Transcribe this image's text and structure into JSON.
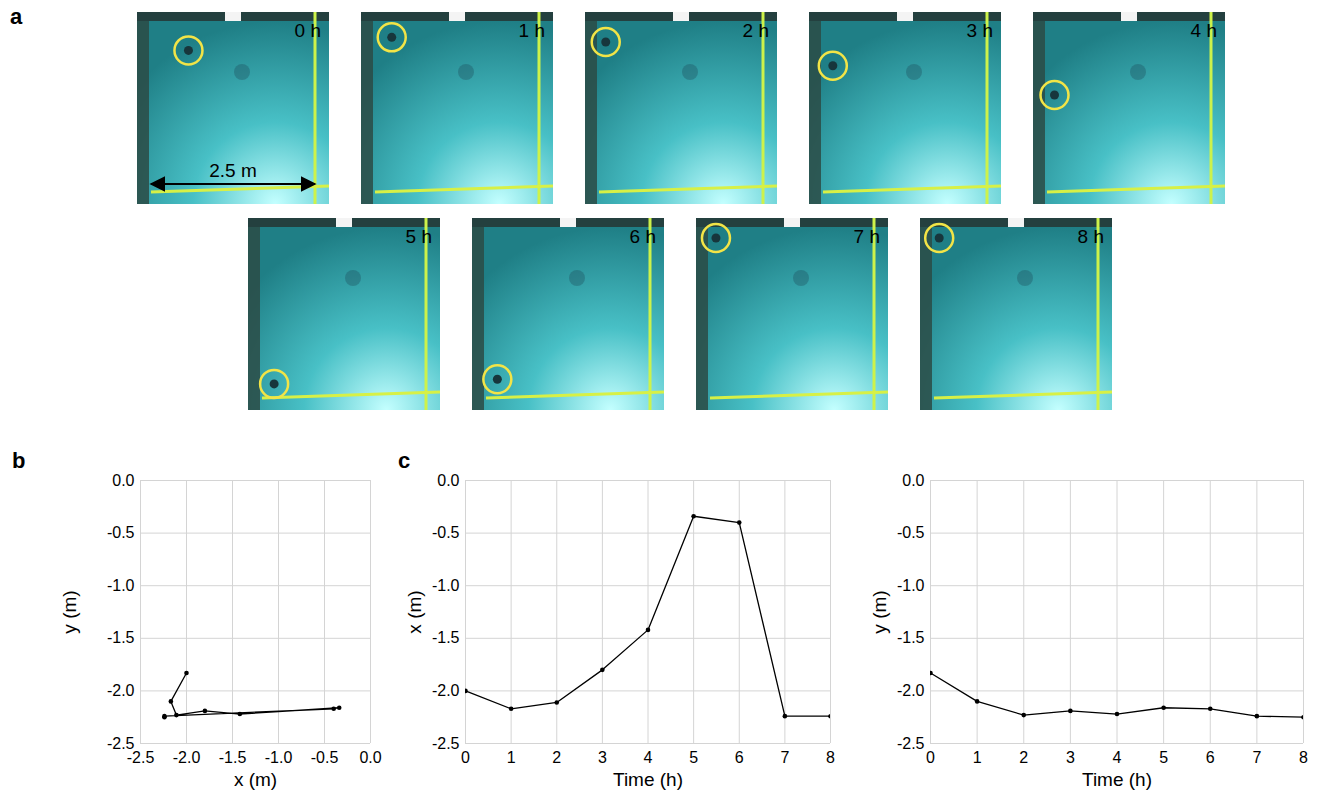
{
  "chart_data": [
    {
      "panel": "a",
      "type": "image_sequence",
      "frame_labels": [
        "0 h",
        "1 h",
        "2 h",
        "3 h",
        "4 h",
        "5 h",
        "6 h",
        "7 h",
        "8 h"
      ],
      "scale_label": "2.5 m",
      "color": "#f2e447"
    },
    {
      "panel": "b",
      "type": "line",
      "marker": "circle",
      "color": "#000000",
      "grid": true,
      "xlabel": "x (m)",
      "ylabel": "y (m)",
      "x": [
        -2.0,
        -2.17,
        -2.11,
        -1.8,
        -1.42,
        -0.34,
        -0.4,
        -2.24,
        -2.24
      ],
      "y": [
        -1.83,
        -2.1,
        -2.23,
        -2.19,
        -2.22,
        -2.16,
        -2.17,
        -2.24,
        -2.25
      ],
      "xlim": [
        -2.5,
        0
      ],
      "ylim": [
        -2.5,
        0
      ],
      "xticks": [
        -2.5,
        {
          "value": -2,
          "label": "-2.0"
        },
        -1.5,
        {
          "value": -1,
          "label": "-1.0"
        },
        -0.5,
        {
          "value": 0,
          "label": "0.0"
        }
      ],
      "yticks": [
        -2.5,
        {
          "value": -2,
          "label": "-2.0"
        },
        -1.5,
        {
          "value": -1,
          "label": "-1.0"
        },
        -0.5,
        {
          "value": 0,
          "label": "0.0"
        }
      ]
    },
    {
      "panel": "c",
      "type": "line",
      "marker": "circle",
      "color": "#000000",
      "grid": true,
      "xlabel": "Time (h)",
      "ylabel": "x (m)",
      "x": [
        0,
        1,
        2,
        3,
        4,
        5,
        6,
        7,
        8
      ],
      "values": [
        -2.0,
        -2.17,
        -2.11,
        -1.8,
        -1.42,
        -0.34,
        -0.4,
        -2.24,
        -2.24
      ],
      "xlim": [
        0,
        8
      ],
      "ylim": [
        -2.5,
        0
      ],
      "xticks": [
        0,
        1,
        2,
        3,
        4,
        5,
        6,
        7,
        8
      ],
      "yticks": [
        -2.5,
        {
          "value": -2,
          "label": "-2.0"
        },
        -1.5,
        {
          "value": -1,
          "label": "-1.0"
        },
        -0.5,
        {
          "value": 0,
          "label": "0.0"
        }
      ]
    },
    {
      "type": "line",
      "marker": "circle",
      "color": "#000000",
      "grid": true,
      "xlabel": "Time (h)",
      "ylabel": "y (m)",
      "x": [
        0,
        1,
        2,
        3,
        4,
        5,
        6,
        7,
        8
      ],
      "values": [
        -1.83,
        -2.1,
        -2.23,
        -2.19,
        -2.22,
        -2.16,
        -2.17,
        -2.24,
        -2.25
      ],
      "xlim": [
        0,
        8
      ],
      "ylim": [
        -2.5,
        0
      ],
      "xticks": [
        0,
        1,
        2,
        3,
        4,
        5,
        6,
        7,
        8
      ],
      "yticks": [
        -2.5,
        {
          "value": -2,
          "label": "-2.0"
        },
        -1.5,
        {
          "value": -1,
          "label": "-1.0"
        },
        -0.5,
        {
          "value": 0,
          "label": "0.0"
        }
      ]
    }
  ]
}
